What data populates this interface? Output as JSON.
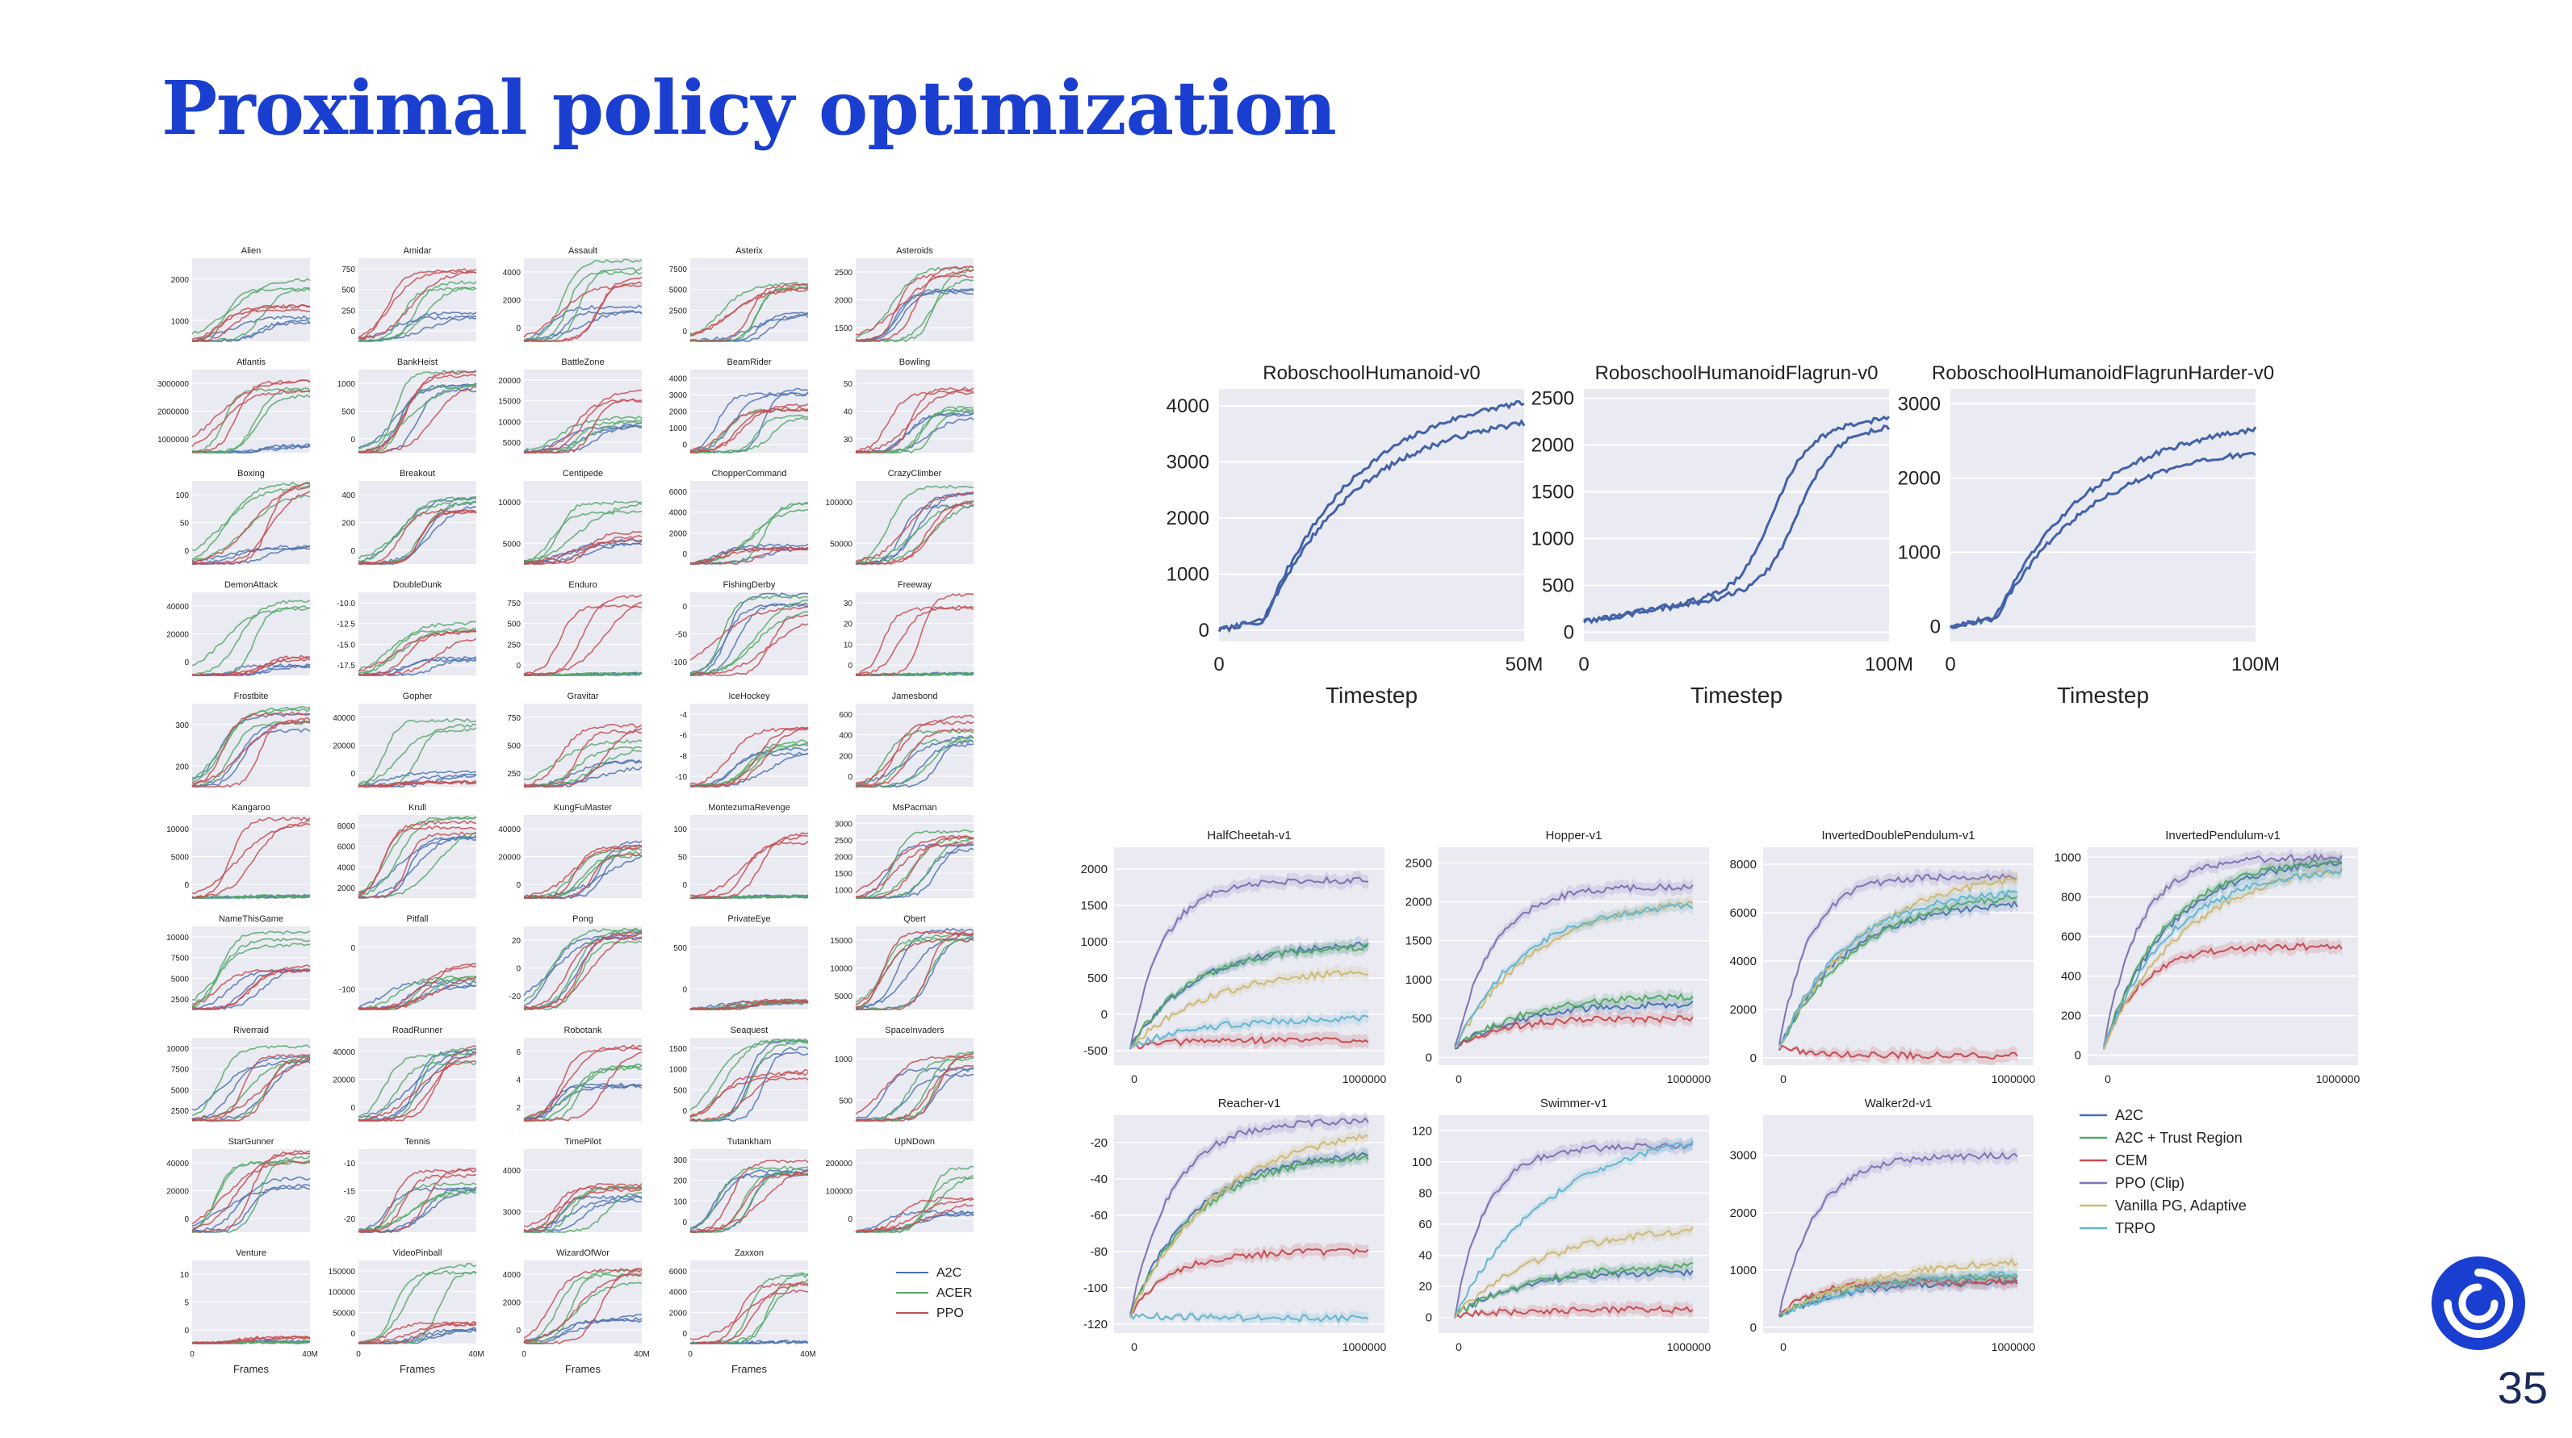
{
  "slide": {
    "title": "Proximal policy optimization",
    "number": "35"
  },
  "colors": {
    "title": "#1a3fd0",
    "panel_bg": "#eaeaf2",
    "A2C": "#4c72b0",
    "ACER": "#55a868",
    "PPO": "#c44e52",
    "trust": "#55a868",
    "cem": "#c44e52",
    "ppoclip": "#8172b2",
    "vanilla": "#ccb974",
    "trpo": "#64b5cd"
  },
  "chart_data": [
    {
      "id": "atari",
      "type": "line",
      "title": "",
      "xlabel": "Frames",
      "xlim": [
        0,
        40
      ],
      "xticks": [
        "0",
        "40M"
      ],
      "legend": {
        "placement": "bottom-right",
        "entries": [
          "A2C",
          "ACER",
          "PPO"
        ]
      },
      "games": [
        {
          "name": "Alien",
          "yticks": [
            "1000",
            "2000"
          ],
          "ymax": 2600,
          "v": [
            700,
            1800,
            1000
          ]
        },
        {
          "name": "Amidar",
          "yticks": [
            "0",
            "250",
            "500",
            "750"
          ],
          "ymax": 950,
          "v": [
            300,
            650,
            800
          ]
        },
        {
          "name": "Assault",
          "yticks": [
            "0",
            "2000",
            "4000"
          ],
          "ymax": 5000,
          "v": [
            2000,
            4500,
            3800
          ]
        },
        {
          "name": "Asterix",
          "yticks": [
            "0",
            "2500",
            "5000",
            "7500"
          ],
          "ymax": 9000,
          "v": [
            3000,
            6000,
            5500
          ]
        },
        {
          "name": "Asteroids",
          "yticks": [
            "1500",
            "2000",
            "2500"
          ],
          "ymax": 2800,
          "v": [
            1800,
            2300,
            2400
          ]
        },
        {
          "name": "Atlantis",
          "yticks": [
            "1000000",
            "2000000",
            "3000000"
          ],
          "ymax": 3500000,
          "v": [
            300000,
            2500000,
            2800000
          ]
        },
        {
          "name": "BankHeist",
          "yticks": [
            "0",
            "500",
            "1000"
          ],
          "ymax": 1300,
          "v": [
            1100,
            1200,
            1250
          ]
        },
        {
          "name": "BattleZone",
          "yticks": [
            "5000",
            "10000",
            "15000",
            "20000"
          ],
          "ymax": 22000,
          "v": [
            8000,
            9000,
            16000
          ]
        },
        {
          "name": "BeamRider",
          "yticks": [
            "0",
            "1000",
            "2000",
            "3000",
            "4000"
          ],
          "ymax": 4200,
          "v": [
            3000,
            2000,
            2400
          ]
        },
        {
          "name": "Bowling",
          "yticks": [
            "30",
            "40",
            "50"
          ],
          "ymax": 65,
          "v": [
            30,
            35,
            55
          ]
        },
        {
          "name": "Boxing",
          "yticks": [
            "0",
            "50",
            "100"
          ],
          "ymax": 100,
          "v": [
            20,
            95,
            95
          ]
        },
        {
          "name": "Breakout",
          "yticks": [
            "0",
            "200",
            "400"
          ],
          "ymax": 450,
          "v": [
            350,
            350,
            300
          ]
        },
        {
          "name": "Centipede",
          "yticks": [
            "5000",
            "10000"
          ],
          "ymax": 13000,
          "v": [
            3500,
            9000,
            4500
          ]
        },
        {
          "name": "ChopperCommand",
          "yticks": [
            "0",
            "2000",
            "4000",
            "6000"
          ],
          "ymax": 7000,
          "v": [
            1500,
            5000,
            1300
          ]
        },
        {
          "name": "CrazyClimber",
          "yticks": [
            "50000",
            "100000"
          ],
          "ymax": 125000,
          "v": [
            100000,
            110000,
            105000
          ]
        },
        {
          "name": "DemonAttack",
          "yticks": [
            "0",
            "20000",
            "40000"
          ],
          "ymax": 45000,
          "v": [
            5000,
            40000,
            10000
          ]
        },
        {
          "name": "DoubleDunk",
          "yticks": [
            "-17.5",
            "-15.0",
            "-12.5",
            "-10.0"
          ],
          "ymax": 100,
          "v": [
            20,
            60,
            50
          ]
        },
        {
          "name": "Enduro",
          "yticks": [
            "0",
            "250",
            "500",
            "750"
          ],
          "ymax": 850,
          "v": [
            0,
            0,
            750
          ]
        },
        {
          "name": "FishingDerby",
          "yticks": [
            "-100",
            "-50",
            "0"
          ],
          "ymax": 100,
          "v": [
            90,
            90,
            85
          ]
        },
        {
          "name": "Freeway",
          "yticks": [
            "0",
            "10",
            "20",
            "30"
          ],
          "ymax": 35,
          "v": [
            0,
            0,
            33
          ]
        },
        {
          "name": "Frostbite",
          "yticks": [
            "200",
            "300"
          ],
          "ymax": 330,
          "v": [
            260,
            290,
            290
          ]
        },
        {
          "name": "Gopher",
          "yticks": [
            "0",
            "20000",
            "40000"
          ],
          "ymax": 50000,
          "v": [
            8000,
            40000,
            3000
          ]
        },
        {
          "name": "Gravitar",
          "yticks": [
            "250",
            "500",
            "750"
          ],
          "ymax": 850,
          "v": [
            250,
            450,
            600
          ]
        },
        {
          "name": "IceHockey",
          "yticks": [
            "-10",
            "-8",
            "-6",
            "-4"
          ],
          "ymax": 100,
          "v": [
            45,
            55,
            75
          ]
        },
        {
          "name": "Jamesbond",
          "yticks": [
            "0",
            "200",
            "400",
            "600"
          ],
          "ymax": 700,
          "v": [
            400,
            450,
            550
          ]
        },
        {
          "name": "Kangaroo",
          "yticks": [
            "0",
            "5000",
            "10000"
          ],
          "ymax": 13000,
          "v": [
            50,
            50,
            12000
          ]
        },
        {
          "name": "Krull",
          "yticks": [
            "2000",
            "4000",
            "6000",
            "8000"
          ],
          "ymax": 9000,
          "v": [
            7500,
            8500,
            8000
          ]
        },
        {
          "name": "KungFuMaster",
          "yticks": [
            "0",
            "20000",
            "40000"
          ],
          "ymax": 45000,
          "v": [
            28000,
            25000,
            27000
          ]
        },
        {
          "name": "MontezumaRevenge",
          "yticks": [
            "0",
            "50",
            "100"
          ],
          "ymax": 110,
          "v": [
            0,
            0,
            80
          ]
        },
        {
          "name": "MsPacman",
          "yticks": [
            "1000",
            "1500",
            "2000",
            "2500",
            "3000"
          ],
          "ymax": 3200,
          "v": [
            2000,
            2600,
            2200
          ]
        },
        {
          "name": "NameThisGame",
          "yticks": [
            "2500",
            "5000",
            "7500",
            "10000"
          ],
          "ymax": 11000,
          "v": [
            5500,
            10000,
            6000
          ]
        },
        {
          "name": "Pitfall",
          "yticks": [
            "-100",
            "0"
          ],
          "ymax": 100,
          "v": [
            30,
            40,
            50
          ]
        },
        {
          "name": "Pong",
          "yticks": [
            "-20",
            "0",
            "20"
          ],
          "ymax": 100,
          "v": [
            95,
            95,
            95
          ]
        },
        {
          "name": "PrivateEye",
          "yticks": [
            "0",
            "500"
          ],
          "ymax": 1000,
          "v": [
            100,
            100,
            120
          ]
        },
        {
          "name": "Qbert",
          "yticks": [
            "5000",
            "10000",
            "15000"
          ],
          "ymax": 17000,
          "v": [
            15000,
            14000,
            15000
          ]
        },
        {
          "name": "Riverraid",
          "yticks": [
            "2500",
            "5000",
            "7500",
            "10000"
          ],
          "ymax": 11000,
          "v": [
            8500,
            9000,
            9000
          ]
        },
        {
          "name": "RoadRunner",
          "yticks": [
            "0",
            "20000",
            "40000"
          ],
          "ymax": 48000,
          "v": [
            40000,
            38000,
            40000
          ]
        },
        {
          "name": "Robotank",
          "yticks": [
            "2",
            "4",
            "6"
          ],
          "ymax": 7,
          "v": [
            3,
            5,
            6
          ]
        },
        {
          "name": "Seaquest",
          "yticks": [
            "0",
            "500",
            "1000",
            "1500"
          ],
          "ymax": 1700,
          "v": [
            1600,
            1700,
            1000
          ]
        },
        {
          "name": "SpaceInvaders",
          "yticks": [
            "500",
            "1000"
          ],
          "ymax": 1300,
          "v": [
            800,
            1100,
            1000
          ]
        },
        {
          "name": "StarGunner",
          "yticks": [
            "0",
            "20000",
            "40000"
          ],
          "ymax": 48000,
          "v": [
            30000,
            40000,
            45000
          ]
        },
        {
          "name": "Tennis",
          "yticks": [
            "-20",
            "-15",
            "-10"
          ],
          "ymax": 100,
          "v": [
            50,
            55,
            70
          ]
        },
        {
          "name": "TimePilot",
          "yticks": [
            "3000",
            "4000"
          ],
          "ymax": 100,
          "v": [
            40,
            50,
            60
          ]
        },
        {
          "name": "Tutankham",
          "yticks": [
            "0",
            "100",
            "200",
            "300"
          ],
          "ymax": 320,
          "v": [
            220,
            260,
            250
          ]
        },
        {
          "name": "UpNDown",
          "yticks": [
            "0",
            "100000",
            "200000"
          ],
          "ymax": 220000,
          "v": [
            50000,
            160000,
            90000
          ]
        },
        {
          "name": "Venture",
          "yticks": [
            "0",
            "5",
            "10"
          ],
          "ymax": 13,
          "v": [
            0,
            0,
            1
          ]
        },
        {
          "name": "VideoPinball",
          "yticks": [
            "0",
            "50000",
            "100000",
            "150000"
          ],
          "ymax": 170000,
          "v": [
            30000,
            150000,
            40000
          ]
        },
        {
          "name": "WizardOfWor",
          "yticks": [
            "0",
            "2000",
            "4000"
          ],
          "ymax": 4600,
          "v": [
            1500,
            4000,
            4200
          ]
        },
        {
          "name": "Zaxxon",
          "yticks": [
            "0",
            "2000",
            "4000",
            "6000"
          ],
          "ymax": 7000,
          "v": [
            30,
            5500,
            5000
          ]
        }
      ]
    },
    {
      "id": "roboschool",
      "type": "line",
      "xlabel": "Timestep",
      "panels": [
        {
          "title": "RoboschoolHumanoid-v0",
          "xticks": [
            "0",
            "50M"
          ],
          "yticks": [
            0,
            1000,
            2000,
            3000,
            4000
          ],
          "ylim": [
            -200,
            4300
          ],
          "final": [
            4200,
            4100
          ],
          "shape": "early"
        },
        {
          "title": "RoboschoolHumanoidFlagrun-v0",
          "xticks": [
            "0",
            "100M"
          ],
          "yticks": [
            0,
            500,
            1000,
            1500,
            2000,
            2500
          ],
          "ylim": [
            -100,
            2600
          ],
          "final": [
            2300,
            2200
          ],
          "shape": "late"
        },
        {
          "title": "RoboschoolHumanoidFlagrunHarder-v0",
          "xticks": [
            "0",
            "100M"
          ],
          "yticks": [
            0,
            1000,
            2000,
            3000
          ],
          "ylim": [
            -200,
            3200
          ],
          "final": [
            2750,
            2600
          ],
          "shape": "early"
        }
      ]
    },
    {
      "id": "mujoco",
      "type": "line",
      "xticks": [
        "0",
        "1000000"
      ],
      "legend": {
        "placement": "right",
        "entries": [
          "A2C",
          "A2C + Trust Region",
          "CEM",
          "PPO (Clip)",
          "Vanilla PG, Adaptive",
          "TRPO"
        ]
      },
      "panels": [
        {
          "title": "HalfCheetah-v1",
          "yticks": [
            -500,
            0,
            500,
            1000,
            1500,
            2000
          ],
          "ylim": [
            -700,
            2300
          ],
          "final": {
            "A2C": 1000,
            "A2C + Trust Region": 950,
            "CEM": -350,
            "PPO (Clip)": 1850,
            "Vanilla PG, Adaptive": 650,
            "TRPO": -50
          }
        },
        {
          "title": "Hopper-v1",
          "yticks": [
            0,
            500,
            1000,
            1500,
            2000,
            2500
          ],
          "ylim": [
            -100,
            2700
          ],
          "final": {
            "A2C": 700,
            "A2C + Trust Region": 800,
            "CEM": 500,
            "PPO (Clip)": 2200,
            "Vanilla PG, Adaptive": 2100,
            "TRPO": 2000
          }
        },
        {
          "title": "InvertedDoublePendulum-v1",
          "yticks": [
            0,
            2000,
            4000,
            6000,
            8000
          ],
          "ylim": [
            -300,
            8700
          ],
          "final": {
            "A2C": 6500,
            "A2C + Trust Region": 7000,
            "CEM": 100,
            "PPO (Clip)": 7500,
            "Vanilla PG, Adaptive": 7800,
            "TRPO": 7000
          }
        },
        {
          "title": "InvertedPendulum-v1",
          "yticks": [
            0,
            200,
            400,
            600,
            800,
            1000
          ],
          "ylim": [
            -50,
            1050
          ],
          "final": {
            "A2C": 1000,
            "A2C + Trust Region": 1000,
            "CEM": 550,
            "PPO (Clip)": 1000,
            "Vanilla PG, Adaptive": 1000,
            "TRPO": 950
          }
        },
        {
          "title": "Reacher-v1",
          "yticks": [
            -120,
            -100,
            -80,
            -60,
            -40,
            -20
          ],
          "ylim": [
            -125,
            -5
          ],
          "final": {
            "A2C": -25,
            "A2C + Trust Region": -25,
            "CEM": -80,
            "PPO (Clip)": -8,
            "Vanilla PG, Adaptive": -10,
            "TRPO": -117
          }
        },
        {
          "title": "Swimmer-v1",
          "yticks": [
            0,
            20,
            40,
            60,
            80,
            100,
            120
          ],
          "ylim": [
            -10,
            130
          ],
          "final": {
            "A2C": 30,
            "A2C + Trust Region": 35,
            "CEM": 5,
            "PPO (Clip)": 110,
            "Vanilla PG, Adaptive": 60,
            "TRPO": 123
          }
        },
        {
          "title": "Walker2d-v1",
          "yticks": [
            0,
            1000,
            2000,
            3000
          ],
          "ylim": [
            -100,
            3700
          ],
          "final": {
            "A2C": 800,
            "A2C + Trust Region": 900,
            "CEM": 800,
            "PPO (Clip)": 3000,
            "Vanilla PG, Adaptive": 1200,
            "TRPO": 1000
          }
        }
      ]
    }
  ]
}
